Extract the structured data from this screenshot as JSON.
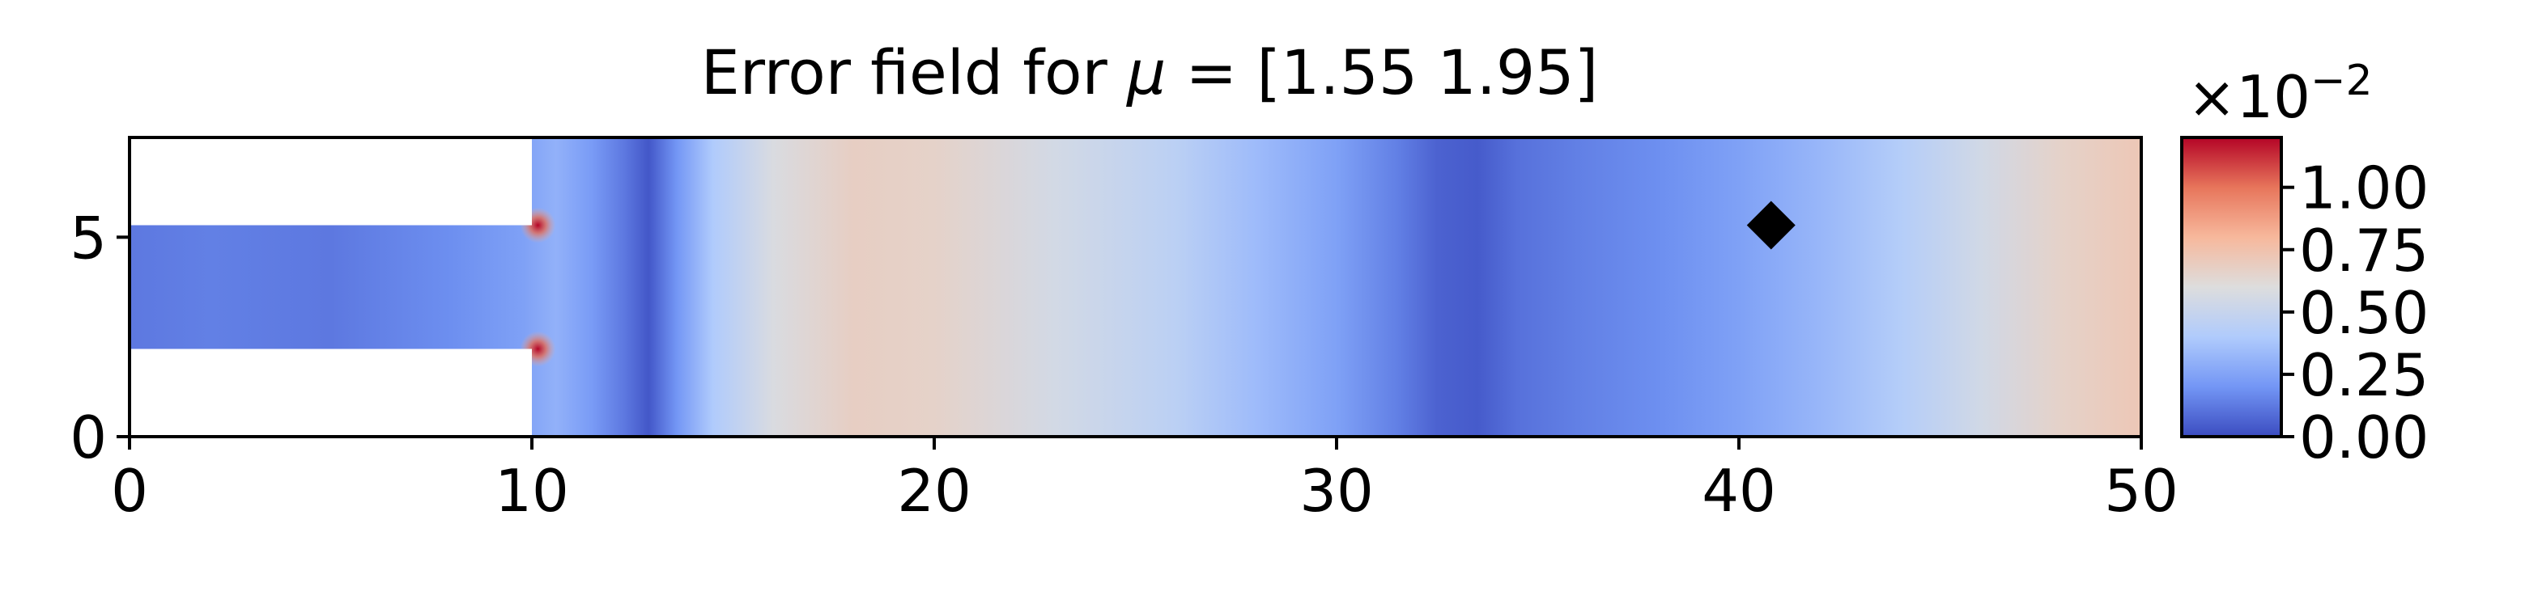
{
  "chart_data": {
    "type": "heatmap",
    "title": "Error field for μ = [1.55 1.95]",
    "title_prefix": "Error field for ",
    "title_symbol": "μ",
    "title_suffix": " = [1.55 1.95]",
    "xlabel": "",
    "ylabel": "",
    "xlim": [
      0,
      50
    ],
    "ylim": [
      0,
      7.5
    ],
    "x_ticks": [
      0,
      10,
      20,
      30,
      40,
      50
    ],
    "y_ticks": [
      0,
      5
    ],
    "x_tick_labels": [
      "0",
      "10",
      "20",
      "30",
      "40",
      "50"
    ],
    "y_tick_labels": [
      "0",
      "5"
    ],
    "grid": false,
    "colormap": "coolwarm",
    "colormap_stops": [
      "#3b4cc0",
      "#7396f5",
      "#b0cbfc",
      "#dddddd",
      "#f7b89c",
      "#e7755b",
      "#b40426"
    ],
    "domain": {
      "channel": {
        "x": [
          0,
          10
        ],
        "y": [
          2.2,
          5.3
        ]
      },
      "main": {
        "x": [
          10,
          50
        ],
        "y": [
          0,
          7.5
        ]
      }
    },
    "error_profile": {
      "x": [
        0,
        2,
        5,
        8,
        9.8,
        10.6,
        11.5,
        12.3,
        12.9,
        13.6,
        14.5,
        16,
        18,
        20,
        23,
        26,
        28,
        30,
        31.5,
        32.5,
        33.5,
        34.5,
        36,
        38,
        40,
        42,
        44,
        46,
        48,
        50
      ],
      "value": [
        0.12,
        0.14,
        0.12,
        0.18,
        0.24,
        0.3,
        0.22,
        0.12,
        0.03,
        0.2,
        0.4,
        0.58,
        0.68,
        0.66,
        0.55,
        0.45,
        0.34,
        0.24,
        0.14,
        0.06,
        0.04,
        0.1,
        0.14,
        0.18,
        0.24,
        0.32,
        0.42,
        0.54,
        0.66,
        0.72
      ]
    },
    "hotspots": [
      {
        "x": 10.15,
        "y": 5.3,
        "value": 1.15
      },
      {
        "x": 10.15,
        "y": 2.2,
        "value": 1.05
      }
    ],
    "marker": {
      "shape": "diamond",
      "color": "#000000",
      "x": 40.8,
      "y": 5.3
    },
    "colorbar": {
      "min": 0.0,
      "max": 1.2,
      "ticks": [
        0.0,
        0.25,
        0.5,
        0.75,
        1.0
      ],
      "tick_labels": [
        "0.00",
        "0.25",
        "0.50",
        "0.75",
        "1.00"
      ],
      "multiplier_base": "×10",
      "multiplier_exp": "−2"
    }
  }
}
